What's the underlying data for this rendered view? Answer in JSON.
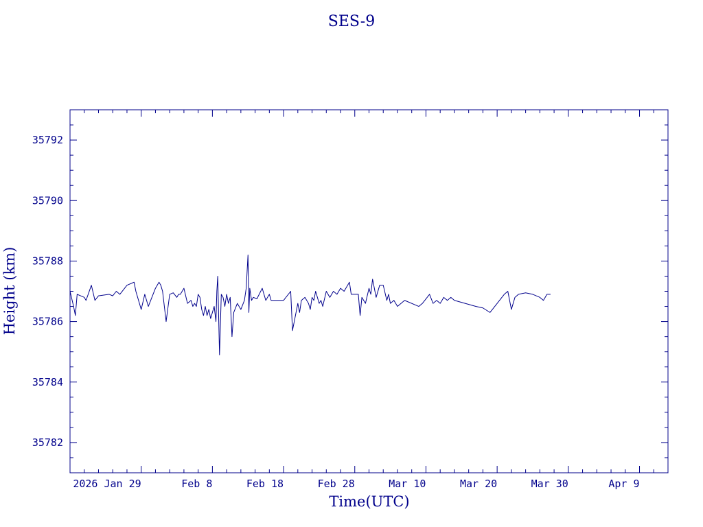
{
  "chart_data": {
    "type": "line",
    "title": "SES-9",
    "xlabel": "Time(UTC)",
    "ylabel": "Height (km)",
    "color": "#00008b",
    "grid": false,
    "legend": "none",
    "xlim": [
      "2026-01-19",
      "2026-04-13"
    ],
    "ylim": [
      35781.0,
      35793.0
    ],
    "x_ticks": [
      {
        "date": "2026-01-29",
        "label": "2026 Jan 29"
      },
      {
        "date": "2026-02-08",
        "label": "Feb  8"
      },
      {
        "date": "2026-02-18",
        "label": "Feb 18"
      },
      {
        "date": "2026-02-28",
        "label": "Feb 28"
      },
      {
        "date": "2026-03-10",
        "label": "Mar 10"
      },
      {
        "date": "2026-03-20",
        "label": "Mar 20"
      },
      {
        "date": "2026-03-30",
        "label": "Mar 30"
      },
      {
        "date": "2026-04-09",
        "label": "Apr  9"
      }
    ],
    "y_ticks": [
      35782,
      35784,
      35786,
      35788,
      35790,
      35792
    ],
    "series": [
      {
        "x": [
          "2026-01-19T00:00",
          "2026-01-19T12:00",
          "2026-01-19T18:00",
          "2026-01-20T00:00",
          "2026-01-21T00:00",
          "2026-01-21T06:00",
          "2026-01-22T00:00",
          "2026-01-22T12:00",
          "2026-01-23T00:00",
          "2026-01-24T12:00",
          "2026-01-25T00:00",
          "2026-01-25T12:00",
          "2026-01-26T00:00",
          "2026-01-27T00:00",
          "2026-01-28T00:00",
          "2026-01-28T06:00",
          "2026-01-29T00:00",
          "2026-01-29T12:00",
          "2026-01-30T00:00",
          "2026-01-30T12:00",
          "2026-01-31T00:00",
          "2026-01-31T12:00",
          "2026-01-31T18:00",
          "2026-02-01T00:00",
          "2026-02-01T12:00",
          "2026-02-02T00:00",
          "2026-02-02T12:00",
          "2026-02-03T00:00",
          "2026-02-03T06:00",
          "2026-02-03T12:00",
          "2026-02-04T00:00",
          "2026-02-04T12:00",
          "2026-02-05T00:00",
          "2026-02-05T06:00",
          "2026-02-05T12:00",
          "2026-02-05T18:00",
          "2026-02-06T00:00",
          "2026-02-06T06:00",
          "2026-02-06T12:00",
          "2026-02-06T18:00",
          "2026-02-07T00:00",
          "2026-02-07T06:00",
          "2026-02-07T12:00",
          "2026-02-07T18:00",
          "2026-02-08T06:00",
          "2026-02-08T12:00",
          "2026-02-08T15:00",
          "2026-02-08T18:00",
          "2026-02-09T00:00",
          "2026-02-09T06:00",
          "2026-02-09T12:00",
          "2026-02-09T18:00",
          "2026-02-10T00:00",
          "2026-02-10T06:00",
          "2026-02-10T12:00",
          "2026-02-10T18:00",
          "2026-02-11T00:00",
          "2026-02-11T12:00",
          "2026-02-12T00:00",
          "2026-02-12T12:00",
          "2026-02-12T18:00",
          "2026-02-13T00:00",
          "2026-02-13T03:00",
          "2026-02-13T06:00",
          "2026-02-13T12:00",
          "2026-02-13T18:00",
          "2026-02-14T06:00",
          "2026-02-15T00:00",
          "2026-02-15T12:00",
          "2026-02-16T00:00",
          "2026-02-16T06:00",
          "2026-02-16T12:00",
          "2026-02-17T00:00",
          "2026-02-18T00:00",
          "2026-02-19T00:00",
          "2026-02-19T06:00",
          "2026-02-19T12:00",
          "2026-02-20T00:00",
          "2026-02-20T06:00",
          "2026-02-20T12:00",
          "2026-02-21T00:00",
          "2026-02-21T12:00",
          "2026-02-21T18:00",
          "2026-02-22T00:00",
          "2026-02-22T06:00",
          "2026-02-22T12:00",
          "2026-02-23T00:00",
          "2026-02-23T06:00",
          "2026-02-23T12:00",
          "2026-02-24T00:00",
          "2026-02-24T12:00",
          "2026-02-25T00:00",
          "2026-02-25T12:00",
          "2026-02-26T00:00",
          "2026-02-26T12:00",
          "2026-02-27T00:00",
          "2026-02-27T06:00",
          "2026-02-27T12:00",
          "2026-02-28T00:00",
          "2026-02-28T12:00",
          "2026-02-28T18:00",
          "2026-03-01T00:00",
          "2026-03-01T12:00",
          "2026-03-02T00:00",
          "2026-03-02T06:00",
          "2026-03-02T12:00",
          "2026-03-03T00:00",
          "2026-03-03T12:00",
          "2026-03-04T00:00",
          "2026-03-04T12:00",
          "2026-03-04T18:00",
          "2026-03-05T00:00",
          "2026-03-05T12:00",
          "2026-03-06T00:00",
          "2026-03-06T12:00",
          "2026-03-07T00:00",
          "2026-03-09T00:00",
          "2026-03-09T12:00",
          "2026-03-10T12:00",
          "2026-03-11T00:00",
          "2026-03-11T12:00",
          "2026-03-12T00:00",
          "2026-03-12T12:00",
          "2026-03-13T00:00",
          "2026-03-13T12:00",
          "2026-03-14T00:00",
          "2026-03-17T00:00",
          "2026-03-18T00:00",
          "2026-03-19T00:00",
          "2026-03-20T00:00",
          "2026-03-21T00:00",
          "2026-03-21T12:00",
          "2026-03-22T00:00",
          "2026-03-22T12:00",
          "2026-03-23T00:00",
          "2026-03-24T00:00",
          "2026-03-25T00:00",
          "2026-03-26T00:00",
          "2026-03-26T12:00",
          "2026-03-27T00:00",
          "2026-03-27T12:00"
        ],
        "y": [
          35787.0,
          35786.5,
          35786.2,
          35786.9,
          35786.8,
          35786.7,
          35787.2,
          35786.7,
          35786.85,
          35786.9,
          35786.85,
          35787.0,
          35786.9,
          35787.2,
          35787.3,
          35787.0,
          35786.4,
          35786.9,
          35786.5,
          35786.8,
          35787.1,
          35787.3,
          35787.2,
          35787.0,
          35786.0,
          35786.9,
          35786.95,
          35786.8,
          35786.9,
          35786.9,
          35787.1,
          35786.6,
          35786.7,
          35786.5,
          35786.6,
          35786.5,
          35786.9,
          35786.8,
          35786.4,
          35786.2,
          35786.5,
          35786.2,
          35786.4,
          35786.1,
          35786.5,
          35786.0,
          35787.0,
          35787.5,
          35784.9,
          35786.9,
          35786.8,
          35786.5,
          35786.9,
          35786.6,
          35786.8,
          35785.5,
          35786.3,
          35786.6,
          35786.4,
          35786.7,
          35787.1,
          35788.2,
          35786.3,
          35787.1,
          35786.7,
          35786.8,
          35786.75,
          35787.1,
          35786.7,
          35786.9,
          35786.7,
          35786.7,
          35786.7,
          35786.7,
          35787.0,
          35785.7,
          35786.0,
          35786.6,
          35786.3,
          35786.7,
          35786.8,
          35786.6,
          35786.4,
          35786.8,
          35786.7,
          35787.0,
          35786.6,
          35786.7,
          35786.5,
          35787.0,
          35786.8,
          35787.0,
          35786.9,
          35787.1,
          35787.0,
          35787.2,
          35787.3,
          35786.9,
          35786.9,
          35786.9,
          35786.2,
          35786.8,
          35786.6,
          35787.1,
          35786.9,
          35787.4,
          35786.8,
          35787.2,
          35787.2,
          35786.7,
          35786.9,
          35786.6,
          35786.7,
          35786.5,
          35786.6,
          35786.7,
          35786.5,
          35786.6,
          35786.9,
          35786.6,
          35786.7,
          35786.6,
          35786.8,
          35786.7,
          35786.8,
          35786.7,
          35786.5,
          35786.45,
          35786.3,
          35786.6,
          35786.9,
          35787.0,
          35786.4,
          35786.8,
          35786.9,
          35786.95,
          35786.9,
          35786.8,
          35786.7,
          35786.9,
          35786.9
        ]
      }
    ]
  }
}
